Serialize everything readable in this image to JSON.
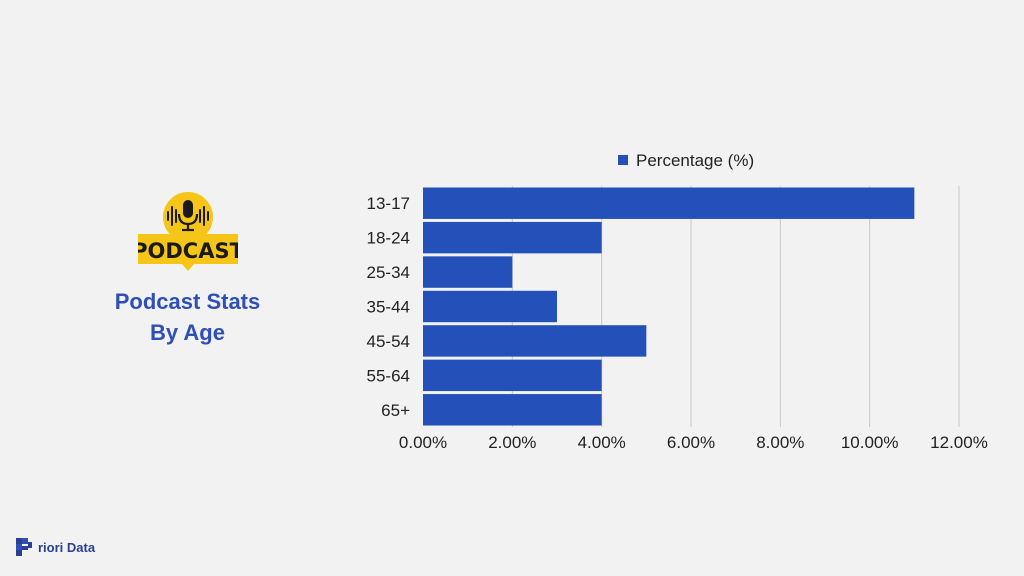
{
  "logo": {
    "badge_text": "PODCAST",
    "icon": "microphone-icon"
  },
  "side_title": {
    "line1": "Podcast Stats",
    "line2": "By Age"
  },
  "brand": {
    "text": "riori Data",
    "icon": "priori-data-logo"
  },
  "colors": {
    "bar": "#2350b9",
    "title": "#2f4fb8",
    "badge": "#f5c518",
    "background": "#f2f2f2"
  },
  "chart_data": {
    "type": "bar",
    "orientation": "horizontal",
    "categories": [
      "13-17",
      "18-24",
      "25-34",
      "35-44",
      "45-54",
      "55-64",
      "65+"
    ],
    "series": [
      {
        "name": "Percentage (%)",
        "values": [
          11.0,
          4.0,
          2.0,
          3.0,
          5.0,
          4.0,
          4.0
        ]
      }
    ],
    "xticks": [
      "0.00%",
      "2.00%",
      "4.00%",
      "6.00%",
      "8.00%",
      "10.00%",
      "12.00%"
    ],
    "xlim": [
      0,
      12
    ],
    "legend": "top",
    "grid": "vertical",
    "title": "",
    "xlabel": "",
    "ylabel": ""
  }
}
